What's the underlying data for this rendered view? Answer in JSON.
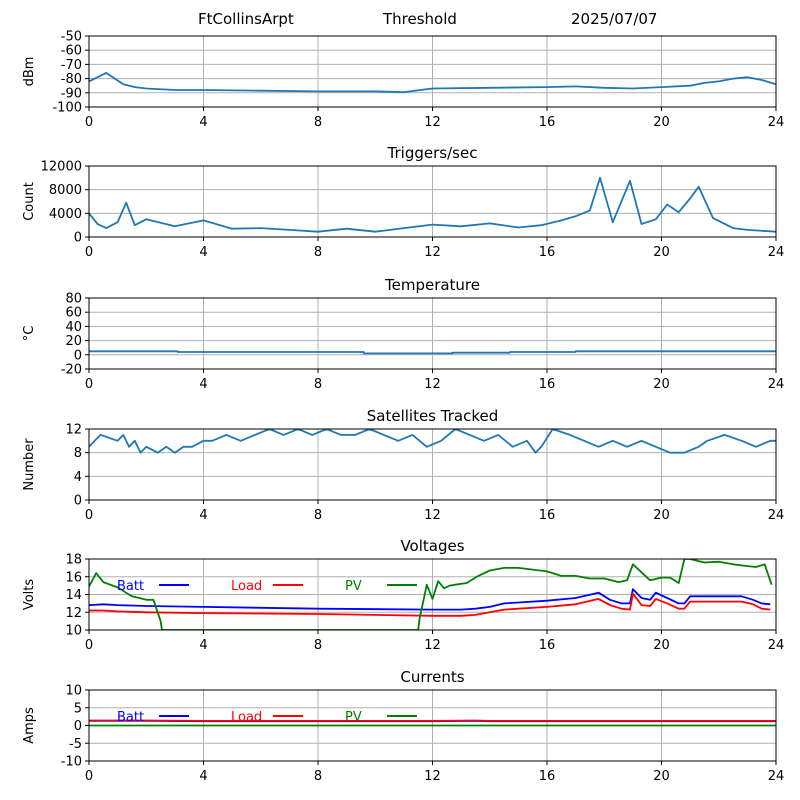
{
  "header": {
    "station": "FtCollinsArpt",
    "mode": "Threshold",
    "date": "2025/07/07"
  },
  "colors": {
    "series": "#1f77b4",
    "grid": "#b0b0b0",
    "batt": "#0000ff",
    "load": "#ff0000",
    "pv": "#008000"
  },
  "chart_data": [
    {
      "type": "line",
      "title": "",
      "ylabel": "dBm",
      "xlim": [
        0,
        24
      ],
      "ylim": [
        -100,
        -50
      ],
      "xticks": [
        "0",
        "4",
        "8",
        "12",
        "16",
        "20",
        "24"
      ],
      "yticks": [
        "-50",
        "-60",
        "-70",
        "-80",
        "-90",
        "-100"
      ],
      "grid": true,
      "series": [
        {
          "x": [
            0,
            0.3,
            0.6,
            0.9,
            1.2,
            1.6,
            2,
            3,
            4,
            6,
            8,
            10,
            11,
            12,
            14,
            16,
            17,
            18,
            19,
            20,
            21,
            21.5,
            22,
            22.5,
            23,
            23.5,
            24
          ],
          "y": [
            -82,
            -79,
            -76,
            -80,
            -84,
            -86,
            -87,
            -88,
            -88,
            -88.5,
            -89,
            -89,
            -89.5,
            -87,
            -86.5,
            -86,
            -85.5,
            -86.5,
            -87,
            -86,
            -85,
            -83,
            -82,
            -80,
            -79,
            -81,
            -84
          ]
        }
      ]
    },
    {
      "type": "line",
      "title": "Triggers/sec",
      "ylabel": "Count",
      "xlim": [
        0,
        24
      ],
      "ylim": [
        0,
        12000
      ],
      "xticks": [
        "0",
        "4",
        "8",
        "12",
        "16",
        "20",
        "24"
      ],
      "yticks": [
        "0",
        "4000",
        "8000",
        "12000"
      ],
      "grid": true,
      "series": [
        {
          "x": [
            0,
            0.3,
            0.6,
            1.0,
            1.3,
            1.6,
            2.0,
            3.0,
            4.0,
            5.0,
            6.0,
            7.0,
            8.0,
            9.0,
            10.0,
            11.0,
            12.0,
            13.0,
            14.0,
            15.0,
            15.8,
            16.5,
            17.0,
            17.5,
            17.85,
            18.3,
            18.9,
            19.3,
            19.8,
            20.2,
            20.6,
            21.0,
            21.3,
            21.8,
            22.5,
            23.0,
            24.0
          ],
          "y": [
            4000,
            2200,
            1500,
            2500,
            5800,
            2000,
            3000,
            1800,
            2800,
            1400,
            1500,
            1200,
            900,
            1400,
            900,
            1500,
            2100,
            1800,
            2300,
            1600,
            2000,
            2800,
            3500,
            4500,
            10000,
            2500,
            9500,
            2200,
            3000,
            5500,
            4200,
            6500,
            8500,
            3200,
            1500,
            1200,
            900
          ]
        }
      ]
    },
    {
      "type": "line",
      "title": "Temperature",
      "ylabel": "°C",
      "xlim": [
        0,
        24
      ],
      "ylim": [
        -20,
        80
      ],
      "xticks": [
        "0",
        "4",
        "8",
        "12",
        "16",
        "20",
        "24"
      ],
      "yticks": [
        "-20",
        "0",
        "20",
        "40",
        "60",
        "80"
      ],
      "grid": true,
      "series": [
        {
          "x": [
            0,
            3.1,
            3.1,
            9.6,
            9.6,
            12.7,
            12.7,
            14.7,
            14.7,
            17.0,
            17.0,
            24
          ],
          "y": [
            5,
            5,
            4,
            4,
            2,
            2,
            3,
            3,
            4,
            4,
            5,
            5
          ]
        }
      ]
    },
    {
      "type": "line",
      "title": "Satellites Tracked",
      "ylabel": "Number",
      "xlim": [
        0,
        24
      ],
      "ylim": [
        0,
        12
      ],
      "xticks": [
        "0",
        "4",
        "8",
        "12",
        "16",
        "20",
        "24"
      ],
      "yticks": [
        "0",
        "4",
        "8",
        "12"
      ],
      "grid": true,
      "series": [
        {
          "x": [
            0,
            0.2,
            0.4,
            1.0,
            1.2,
            1.4,
            1.6,
            1.8,
            2.0,
            2.4,
            2.7,
            3.0,
            3.3,
            3.6,
            4.0,
            4.3,
            4.8,
            5.3,
            5.8,
            6.3,
            6.8,
            7.3,
            7.8,
            8.3,
            8.8,
            9.3,
            9.8,
            10.3,
            10.8,
            11.3,
            11.8,
            12.3,
            12.8,
            13.3,
            13.8,
            14.3,
            14.8,
            15.3,
            15.6,
            15.8,
            16.2,
            16.8,
            17.3,
            17.8,
            18.3,
            18.8,
            19.3,
            19.8,
            20.3,
            20.8,
            21.3,
            21.6,
            22.2,
            22.8,
            23.3,
            23.8,
            24
          ],
          "y": [
            9,
            10,
            11,
            10,
            11,
            9,
            10,
            8,
            9,
            8,
            9,
            8,
            9,
            9,
            10,
            10,
            11,
            10,
            11,
            12,
            11,
            12,
            11,
            12,
            11,
            11,
            12,
            11,
            10,
            11,
            9,
            10,
            12,
            11,
            10,
            11,
            9,
            10,
            8,
            9,
            12,
            11,
            10,
            9,
            10,
            9,
            10,
            9,
            8,
            8,
            9,
            10,
            11,
            10,
            9,
            10,
            10
          ]
        }
      ]
    },
    {
      "type": "line",
      "title": "Voltages",
      "ylabel": "Volts",
      "xlim": [
        0,
        24
      ],
      "ylim": [
        10,
        18
      ],
      "xticks": [
        "0",
        "4",
        "8",
        "12",
        "16",
        "20",
        "24"
      ],
      "yticks": [
        "10",
        "12",
        "14",
        "16",
        "18"
      ],
      "grid": true,
      "legend": "top-left, horizontal",
      "series": [
        {
          "name": "Batt",
          "x": [
            0,
            0.5,
            1,
            2,
            4,
            8,
            12,
            13,
            13.5,
            14,
            14.5,
            15,
            16,
            17,
            17.8,
            18.2,
            18.6,
            18.9,
            19.0,
            19.3,
            19.6,
            19.8,
            20.2,
            20.6,
            20.8,
            21,
            22,
            22.8,
            23.2,
            23.5,
            23.8
          ],
          "y": [
            12.8,
            12.9,
            12.8,
            12.7,
            12.6,
            12.4,
            12.3,
            12.3,
            12.4,
            12.6,
            13.0,
            13.1,
            13.3,
            13.6,
            14.2,
            13.4,
            13.0,
            13.0,
            14.6,
            13.6,
            13.4,
            14.2,
            13.6,
            13.0,
            13.0,
            13.8,
            13.8,
            13.8,
            13.4,
            13.0,
            12.9
          ]
        },
        {
          "name": "Load",
          "x": [
            0,
            0.5,
            1,
            2,
            4,
            8,
            12,
            13,
            13.5,
            14,
            14.5,
            15,
            16,
            17,
            17.8,
            18.2,
            18.6,
            18.9,
            19.0,
            19.3,
            19.6,
            19.8,
            20.2,
            20.6,
            20.8,
            21,
            22,
            22.8,
            23.2,
            23.5,
            23.8
          ],
          "y": [
            12.2,
            12.2,
            12.1,
            12.0,
            11.9,
            11.8,
            11.6,
            11.6,
            11.7,
            12.0,
            12.3,
            12.4,
            12.6,
            12.9,
            13.5,
            12.8,
            12.4,
            12.3,
            14.1,
            12.8,
            12.7,
            13.5,
            13.0,
            12.4,
            12.4,
            13.2,
            13.2,
            13.2,
            12.9,
            12.4,
            12.3
          ]
        },
        {
          "name": "PV",
          "x": [
            0,
            0.25,
            0.5,
            1,
            1.5,
            2,
            2.25,
            2.5,
            2.55,
            11.5,
            11.55,
            11.8,
            12,
            12.2,
            12.4,
            12.6,
            12.8,
            13.2,
            13.6,
            14,
            14.5,
            15,
            15.5,
            16,
            16.5,
            17,
            17.5,
            18,
            18.5,
            18.8,
            19,
            19.3,
            19.6,
            20,
            20.3,
            20.6,
            20.8,
            21,
            21.5,
            22,
            22.5,
            23,
            23.3,
            23.6,
            23.85
          ],
          "y": [
            14.9,
            16.4,
            15.4,
            14.8,
            13.8,
            13.4,
            13.4,
            11.0,
            10.0,
            10.0,
            11.3,
            15.1,
            13.5,
            15.5,
            14.7,
            15.0,
            15.1,
            15.3,
            16.1,
            16.7,
            17.0,
            17.0,
            16.8,
            16.6,
            16.1,
            16.1,
            15.8,
            15.8,
            15.4,
            15.6,
            17.4,
            16.5,
            15.6,
            15.9,
            15.9,
            15.3,
            18.0,
            18.0,
            17.6,
            17.7,
            17.4,
            17.2,
            17.1,
            17.4,
            15.1
          ]
        }
      ]
    },
    {
      "type": "line",
      "title": "Currents",
      "ylabel": "Amps",
      "xlim": [
        0,
        24
      ],
      "ylim": [
        -10,
        10
      ],
      "xticks": [
        "0",
        "4",
        "8",
        "12",
        "16",
        "20",
        "24"
      ],
      "yticks": [
        "-10",
        "-5",
        "0",
        "5",
        "10"
      ],
      "grid": true,
      "legend": "top-left, horizontal",
      "series": [
        {
          "name": "Batt",
          "x": [
            0,
            2,
            4,
            8,
            12,
            13.5,
            14,
            16,
            18,
            19,
            20,
            21,
            24
          ],
          "y": [
            1.3,
            1.3,
            1.2,
            1.2,
            1.2,
            1.3,
            1.2,
            1.2,
            1.2,
            1.2,
            1.2,
            1.2,
            1.2
          ]
        },
        {
          "name": "Load",
          "x": [
            0,
            2,
            4,
            8,
            12,
            13.5,
            14,
            16,
            18,
            19,
            20,
            21,
            24
          ],
          "y": [
            1.4,
            1.4,
            1.3,
            1.3,
            1.3,
            1.4,
            1.3,
            1.3,
            1.3,
            1.3,
            1.3,
            1.3,
            1.3
          ]
        },
        {
          "name": "PV",
          "x": [
            0,
            4,
            8,
            12,
            16,
            20,
            24
          ],
          "y": [
            0,
            0,
            0,
            0,
            0,
            0,
            0
          ]
        }
      ]
    }
  ]
}
